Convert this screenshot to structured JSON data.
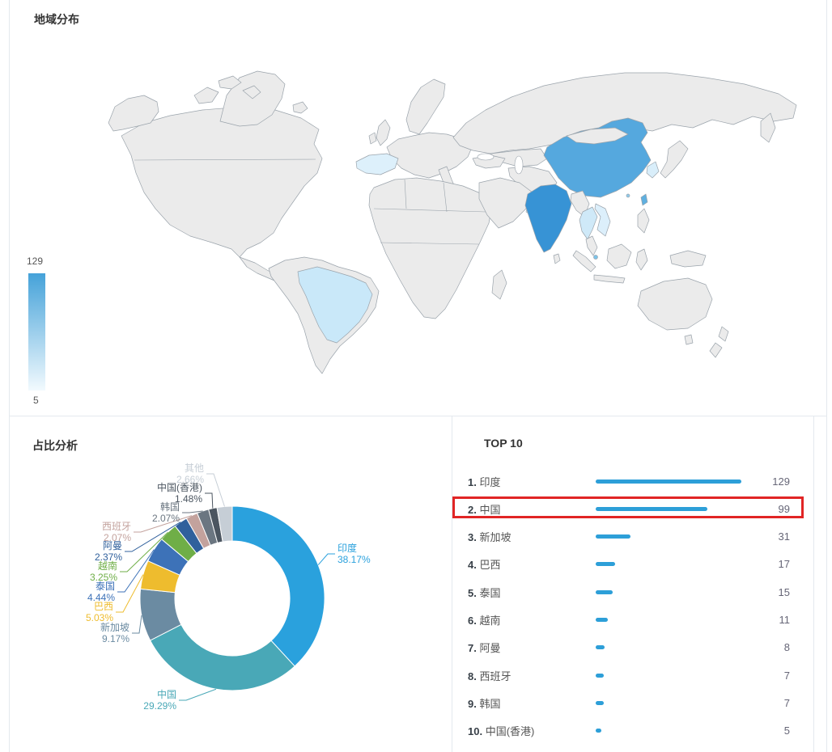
{
  "map_panel": {
    "title": "地域分布",
    "legend": {
      "max": "129",
      "min": "5",
      "gradient_top": "#45a2d9",
      "gradient_bottom": "#f2fafe"
    },
    "land_color": "#ebebeb",
    "border_color": "#9aa3ab",
    "country_colors": {
      "india": "#3793d5",
      "china": "#55a8de",
      "taiwan": "#5fb0e0",
      "hong_kong": "#8fcbEC",
      "singapore": "#7cc4ea",
      "brazil": "#c9e8f9",
      "thailand": "#cfe9f8",
      "vietnam": "#dceffb",
      "south_korea": "#d9eefa",
      "spain": "#ddf0fb",
      "oman": "#e4f3fc"
    }
  },
  "pie_panel": {
    "title": "占比分析"
  },
  "top10_panel": {
    "title": "TOP 10",
    "bar_color": "#2d9fd8",
    "max_value": 129,
    "highlight_color": "#e12525",
    "highlight_row_index": 1,
    "rows": [
      {
        "rank": "1.",
        "name": "印度",
        "value": 129
      },
      {
        "rank": "2.",
        "name": "中国",
        "value": 99
      },
      {
        "rank": "3.",
        "name": "新加坡",
        "value": 31
      },
      {
        "rank": "4.",
        "name": "巴西",
        "value": 17
      },
      {
        "rank": "5.",
        "name": "泰国",
        "value": 15
      },
      {
        "rank": "6.",
        "name": "越南",
        "value": 11
      },
      {
        "rank": "7.",
        "name": "阿曼",
        "value": 8
      },
      {
        "rank": "8.",
        "name": "西班牙",
        "value": 7
      },
      {
        "rank": "9.",
        "name": "韩国",
        "value": 7
      },
      {
        "rank": "10.",
        "name": "中国(香港)",
        "value": 5
      }
    ]
  },
  "chart_data": [
    {
      "type": "heatmap",
      "subtype": "choropleth-world-map",
      "title": "地域分布",
      "legend_range": [
        5,
        129
      ],
      "values": [
        {
          "name": "印度",
          "value": 129
        },
        {
          "name": "中国",
          "value": 99
        },
        {
          "name": "新加坡",
          "value": 31
        },
        {
          "name": "巴西",
          "value": 17
        },
        {
          "name": "泰国",
          "value": 15
        },
        {
          "name": "越南",
          "value": 11
        },
        {
          "name": "阿曼",
          "value": 8
        },
        {
          "name": "西班牙",
          "value": 7
        },
        {
          "name": "韩国",
          "value": 7
        },
        {
          "name": "中国(香港)",
          "value": 5
        }
      ]
    },
    {
      "type": "pie",
      "subtype": "donut",
      "title": "占比分析",
      "slices": [
        {
          "name": "印度",
          "pct": 38.17,
          "color": "#2aa1dd"
        },
        {
          "name": "中国",
          "pct": 29.29,
          "color": "#49a8b7"
        },
        {
          "name": "新加坡",
          "pct": 9.17,
          "color": "#6b8ba2"
        },
        {
          "name": "巴西",
          "pct": 5.03,
          "color": "#eebc2e"
        },
        {
          "name": "泰国",
          "pct": 4.44,
          "color": "#3d72b8"
        },
        {
          "name": "越南",
          "pct": 3.25,
          "color": "#6fae47"
        },
        {
          "name": "阿曼",
          "pct": 2.37,
          "color": "#30609c"
        },
        {
          "name": "西班牙",
          "pct": 2.07,
          "color": "#c3a29d"
        },
        {
          "name": "韩国",
          "pct": 2.07,
          "color": "#6b7681"
        },
        {
          "name": "中国(香港)",
          "pct": 1.48,
          "color": "#4b5560"
        },
        {
          "name": "其他",
          "pct": 2.66,
          "color": "#c6ced6"
        }
      ]
    },
    {
      "type": "bar",
      "orientation": "horizontal",
      "title": "TOP 10",
      "categories": [
        "印度",
        "中国",
        "新加坡",
        "巴西",
        "泰国",
        "越南",
        "阿曼",
        "西班牙",
        "韩国",
        "中国(香港)"
      ],
      "values": [
        129,
        99,
        31,
        17,
        15,
        11,
        8,
        7,
        7,
        5
      ],
      "xlim": [
        0,
        129
      ]
    }
  ]
}
